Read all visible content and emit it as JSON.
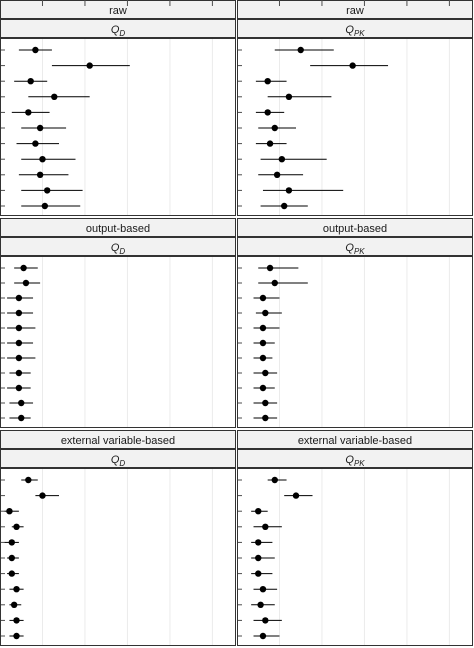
{
  "chart_data": {
    "type": "forest",
    "grid": true,
    "layout": {
      "rows": 3,
      "cols": 2
    },
    "xlim": [
      0,
      1
    ],
    "panels": [
      {
        "method": "raw",
        "quantity_base": "Q",
        "quantity_sub": "D",
        "points": [
          {
            "est": 0.15,
            "lo": 0.08,
            "hi": 0.22
          },
          {
            "est": 0.38,
            "lo": 0.22,
            "hi": 0.55
          },
          {
            "est": 0.13,
            "lo": 0.06,
            "hi": 0.2
          },
          {
            "est": 0.23,
            "lo": 0.12,
            "hi": 0.38
          },
          {
            "est": 0.12,
            "lo": 0.05,
            "hi": 0.21
          },
          {
            "est": 0.17,
            "lo": 0.09,
            "hi": 0.28
          },
          {
            "est": 0.15,
            "lo": 0.07,
            "hi": 0.25
          },
          {
            "est": 0.18,
            "lo": 0.09,
            "hi": 0.32
          },
          {
            "est": 0.17,
            "lo": 0.08,
            "hi": 0.29
          },
          {
            "est": 0.2,
            "lo": 0.09,
            "hi": 0.35
          },
          {
            "est": 0.19,
            "lo": 0.09,
            "hi": 0.34
          }
        ]
      },
      {
        "method": "raw",
        "quantity_base": "Q",
        "quantity_sub": "PK",
        "points": [
          {
            "est": 0.27,
            "lo": 0.16,
            "hi": 0.41
          },
          {
            "est": 0.49,
            "lo": 0.31,
            "hi": 0.64
          },
          {
            "est": 0.13,
            "lo": 0.08,
            "hi": 0.21
          },
          {
            "est": 0.22,
            "lo": 0.13,
            "hi": 0.4
          },
          {
            "est": 0.13,
            "lo": 0.08,
            "hi": 0.2
          },
          {
            "est": 0.16,
            "lo": 0.09,
            "hi": 0.25
          },
          {
            "est": 0.14,
            "lo": 0.08,
            "hi": 0.21
          },
          {
            "est": 0.19,
            "lo": 0.1,
            "hi": 0.38
          },
          {
            "est": 0.17,
            "lo": 0.09,
            "hi": 0.28
          },
          {
            "est": 0.22,
            "lo": 0.11,
            "hi": 0.45
          },
          {
            "est": 0.2,
            "lo": 0.1,
            "hi": 0.3
          }
        ]
      },
      {
        "method": "output-based",
        "quantity_base": "Q",
        "quantity_sub": "D",
        "points": [
          {
            "est": 0.1,
            "lo": 0.06,
            "hi": 0.16
          },
          {
            "est": 0.11,
            "lo": 0.06,
            "hi": 0.17
          },
          {
            "est": 0.08,
            "lo": 0.03,
            "hi": 0.14
          },
          {
            "est": 0.08,
            "lo": 0.03,
            "hi": 0.14
          },
          {
            "est": 0.08,
            "lo": 0.03,
            "hi": 0.15
          },
          {
            "est": 0.08,
            "lo": 0.03,
            "hi": 0.14
          },
          {
            "est": 0.08,
            "lo": 0.03,
            "hi": 0.15
          },
          {
            "est": 0.08,
            "lo": 0.04,
            "hi": 0.13
          },
          {
            "est": 0.08,
            "lo": 0.03,
            "hi": 0.13
          },
          {
            "est": 0.09,
            "lo": 0.04,
            "hi": 0.14
          },
          {
            "est": 0.09,
            "lo": 0.04,
            "hi": 0.13
          }
        ]
      },
      {
        "method": "output-based",
        "quantity_base": "Q",
        "quantity_sub": "PK",
        "points": [
          {
            "est": 0.14,
            "lo": 0.09,
            "hi": 0.26
          },
          {
            "est": 0.16,
            "lo": 0.09,
            "hi": 0.3
          },
          {
            "est": 0.11,
            "lo": 0.07,
            "hi": 0.18
          },
          {
            "est": 0.12,
            "lo": 0.08,
            "hi": 0.19
          },
          {
            "est": 0.11,
            "lo": 0.07,
            "hi": 0.18
          },
          {
            "est": 0.11,
            "lo": 0.07,
            "hi": 0.16
          },
          {
            "est": 0.11,
            "lo": 0.07,
            "hi": 0.15
          },
          {
            "est": 0.12,
            "lo": 0.07,
            "hi": 0.17
          },
          {
            "est": 0.11,
            "lo": 0.07,
            "hi": 0.16
          },
          {
            "est": 0.12,
            "lo": 0.07,
            "hi": 0.17
          },
          {
            "est": 0.12,
            "lo": 0.07,
            "hi": 0.17
          }
        ]
      },
      {
        "method": "external variable-based",
        "quantity_base": "Q",
        "quantity_sub": "D",
        "points": [
          {
            "est": 0.12,
            "lo": 0.09,
            "hi": 0.16
          },
          {
            "est": 0.18,
            "lo": 0.15,
            "hi": 0.25
          },
          {
            "est": 0.04,
            "lo": 0.02,
            "hi": 0.08
          },
          {
            "est": 0.07,
            "lo": 0.05,
            "hi": 0.1
          },
          {
            "est": 0.05,
            "lo": 0.02,
            "hi": 0.08
          },
          {
            "est": 0.05,
            "lo": 0.03,
            "hi": 0.08
          },
          {
            "est": 0.05,
            "lo": 0.03,
            "hi": 0.08
          },
          {
            "est": 0.07,
            "lo": 0.04,
            "hi": 0.1
          },
          {
            "est": 0.06,
            "lo": 0.04,
            "hi": 0.09
          },
          {
            "est": 0.07,
            "lo": 0.04,
            "hi": 0.1
          },
          {
            "est": 0.07,
            "lo": 0.04,
            "hi": 0.1
          }
        ]
      },
      {
        "method": "external variable-based",
        "quantity_base": "Q",
        "quantity_sub": "PK",
        "points": [
          {
            "est": 0.16,
            "lo": 0.13,
            "hi": 0.21
          },
          {
            "est": 0.25,
            "lo": 0.2,
            "hi": 0.32
          },
          {
            "est": 0.09,
            "lo": 0.06,
            "hi": 0.13
          },
          {
            "est": 0.12,
            "lo": 0.07,
            "hi": 0.19
          },
          {
            "est": 0.09,
            "lo": 0.06,
            "hi": 0.15
          },
          {
            "est": 0.09,
            "lo": 0.06,
            "hi": 0.16
          },
          {
            "est": 0.09,
            "lo": 0.06,
            "hi": 0.15
          },
          {
            "est": 0.11,
            "lo": 0.07,
            "hi": 0.17
          },
          {
            "est": 0.1,
            "lo": 0.06,
            "hi": 0.16
          },
          {
            "est": 0.12,
            "lo": 0.07,
            "hi": 0.19
          },
          {
            "est": 0.11,
            "lo": 0.07,
            "hi": 0.18
          }
        ]
      }
    ]
  }
}
